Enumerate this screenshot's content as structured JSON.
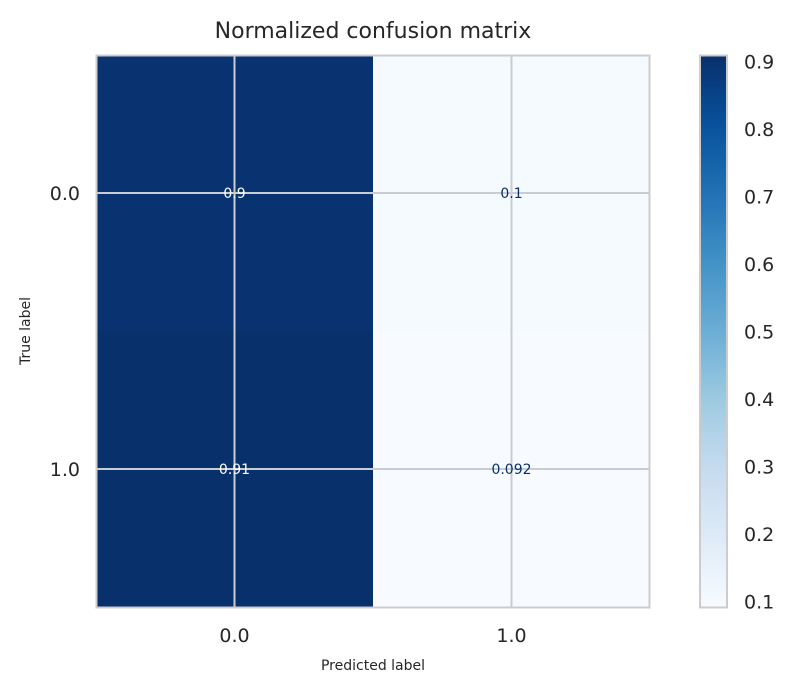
{
  "chart_data": {
    "type": "heatmap",
    "title": "Normalized confusion matrix",
    "xlabel": "Predicted label",
    "ylabel": "True label",
    "x_categories": [
      "0.0",
      "1.0"
    ],
    "y_categories": [
      "0.0",
      "1.0"
    ],
    "cell_labels": [
      [
        "0.9",
        "0.1"
      ],
      [
        "0.91",
        "0.092"
      ]
    ],
    "values": [
      [
        0.9,
        0.1
      ],
      [
        0.91,
        0.092
      ]
    ],
    "colormap": "Blues",
    "colorbar": {
      "min": 0.092,
      "max": 0.91,
      "ticks": [
        "0.1",
        "0.2",
        "0.3",
        "0.4",
        "0.5",
        "0.6",
        "0.7",
        "0.8",
        "0.9"
      ]
    },
    "grid": true,
    "colors": {
      "dark": "#08306b",
      "light": "#f7fbff",
      "grid": "#c9cdd3",
      "frame": "#cccccc",
      "text": "#262626"
    }
  }
}
